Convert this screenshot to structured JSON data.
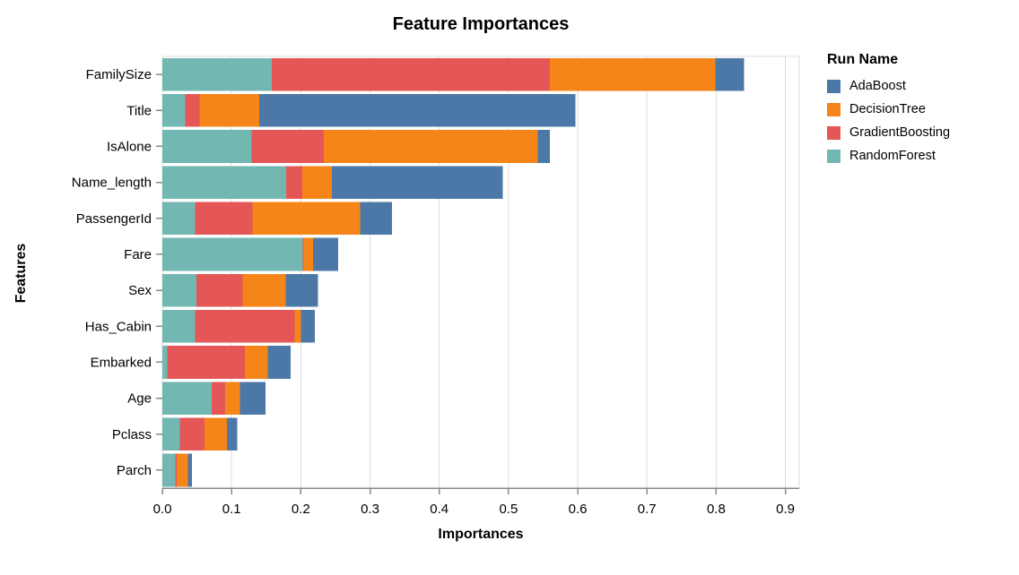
{
  "title": "Feature Importances",
  "legend": {
    "title": "Run Name",
    "items": [
      {
        "label": "AdaBoost",
        "color": "#4c78a8"
      },
      {
        "label": "DecisionTree",
        "color": "#f58518"
      },
      {
        "label": "GradientBoosting",
        "color": "#e45756"
      },
      {
        "label": "RandomForest",
        "color": "#72b7b2"
      }
    ]
  },
  "chart_data": {
    "type": "bar",
    "orientation": "horizontal",
    "stacked": true,
    "title": "Feature Importances",
    "xlabel": "Importances",
    "ylabel": "Features",
    "xlim": [
      0,
      0.92
    ],
    "xticks": [
      0.0,
      0.1,
      0.2,
      0.3,
      0.4,
      0.5,
      0.6,
      0.7,
      0.8,
      0.9
    ],
    "xtick_labels": [
      "0.0",
      "0.1",
      "0.2",
      "0.3",
      "0.4",
      "0.5",
      "0.6",
      "0.7",
      "0.8",
      "0.9"
    ],
    "grid": true,
    "legend_position": "right",
    "categories": [
      "FamilySize",
      "Title",
      "IsAlone",
      "Name_length",
      "PassengerId",
      "Fare",
      "Sex",
      "Has_Cabin",
      "Embarked",
      "Age",
      "Pclass",
      "Parch"
    ],
    "series": [
      {
        "name": "RandomForest",
        "color": "#72b7b2",
        "values": [
          0.158,
          0.033,
          0.129,
          0.179,
          0.047,
          0.203,
          0.049,
          0.047,
          0.007,
          0.071,
          0.025,
          0.019
        ]
      },
      {
        "name": "GradientBoosting",
        "color": "#e45756",
        "values": [
          0.402,
          0.021,
          0.104,
          0.023,
          0.083,
          0.001,
          0.067,
          0.144,
          0.112,
          0.02,
          0.036,
          0.002
        ]
      },
      {
        "name": "DecisionTree",
        "color": "#f58518",
        "values": [
          0.239,
          0.086,
          0.309,
          0.043,
          0.156,
          0.014,
          0.062,
          0.009,
          0.033,
          0.021,
          0.032,
          0.016
        ]
      },
      {
        "name": "AdaBoost",
        "color": "#4c78a8",
        "values": [
          0.041,
          0.457,
          0.018,
          0.247,
          0.046,
          0.036,
          0.047,
          0.02,
          0.033,
          0.037,
          0.015,
          0.006
        ]
      }
    ],
    "totals": [
      0.84,
      0.597,
      0.56,
      0.492,
      0.332,
      0.254,
      0.225,
      0.22,
      0.185,
      0.149,
      0.108,
      0.043
    ]
  },
  "colors": {
    "grid": "#dddddd",
    "frame": "#dddddd",
    "axis_domain": "#888888",
    "tick": "#888888",
    "text": "#000000",
    "background": "#ffffff"
  }
}
